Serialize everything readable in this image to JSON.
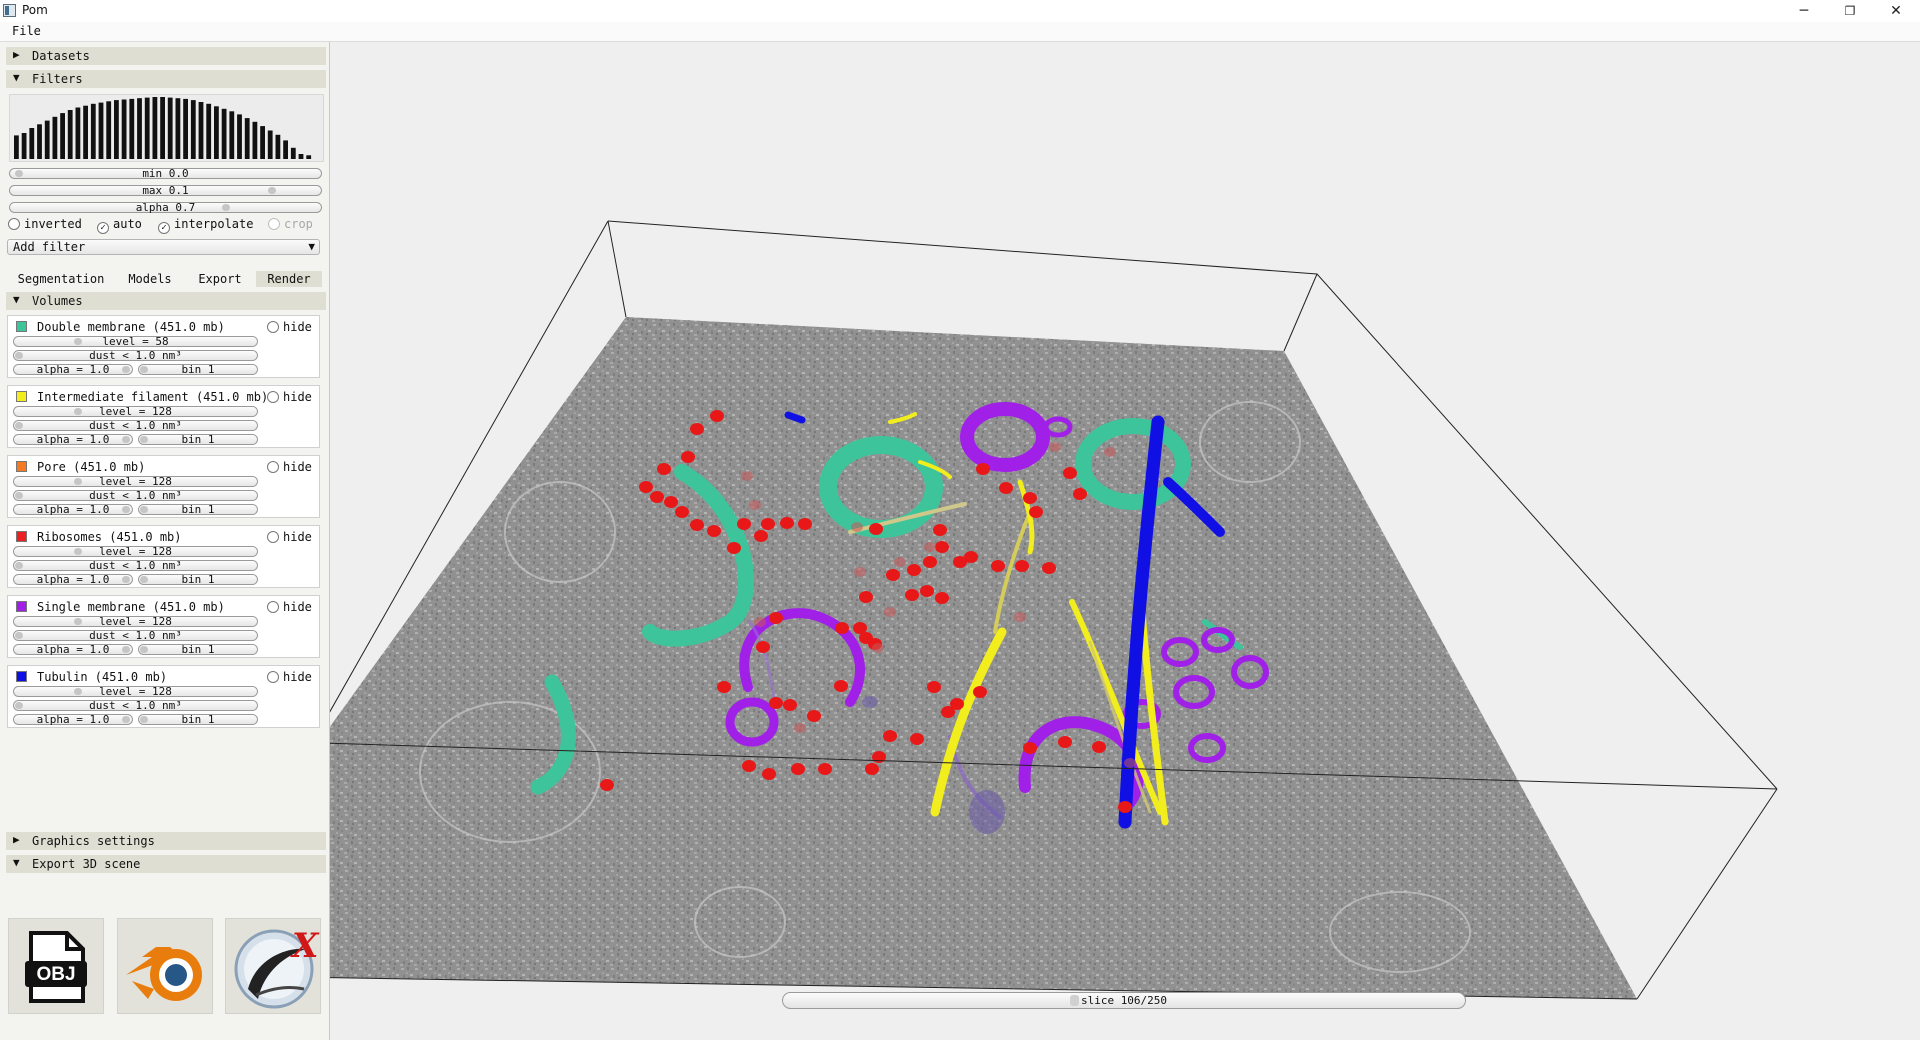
{
  "window": {
    "title": "Pom",
    "minimize": "─",
    "maximize": "❐",
    "close": "✕"
  },
  "menu": {
    "file": "File"
  },
  "sections": {
    "datasets": "Datasets",
    "filters": "Filters",
    "volumes": "Volumes",
    "graphics": "Graphics settings",
    "export3d": "Export 3D scene"
  },
  "arrows": {
    "collapsed": "▶",
    "expanded": "▼",
    "dropdown": "▼"
  },
  "histogram": [
    0.38,
    0.42,
    0.5,
    0.56,
    0.62,
    0.68,
    0.74,
    0.79,
    0.83,
    0.86,
    0.89,
    0.91,
    0.93,
    0.95,
    0.96,
    0.97,
    0.98,
    0.99,
    1.0,
    1.0,
    0.99,
    0.98,
    0.97,
    0.95,
    0.92,
    0.89,
    0.85,
    0.81,
    0.77,
    0.72,
    0.66,
    0.6,
    0.53,
    0.46,
    0.39,
    0.3,
    0.18,
    0.08,
    0.06
  ],
  "filters": {
    "min_label": "min 0.0",
    "min_value": 0.0,
    "max_label": "max 0.1",
    "max_value": 0.1,
    "alpha_label": "alpha 0.7",
    "alpha_value": 0.7,
    "inverted": {
      "label": "inverted",
      "checked": false
    },
    "auto": {
      "label": "auto",
      "checked": true
    },
    "interpolate": {
      "label": "interpolate",
      "checked": true
    },
    "crop": {
      "label": "crop",
      "checked": false,
      "disabled": true
    },
    "add_filter": "Add filter"
  },
  "check_mark": "✓",
  "tabs": [
    {
      "label": "Segmentation",
      "active": false
    },
    {
      "label": "Models",
      "active": false
    },
    {
      "label": "Export",
      "active": false
    },
    {
      "label": "Render",
      "active": true
    }
  ],
  "hide_label": "hide",
  "volumes": [
    {
      "name": "Double membrane (451.0 mb)",
      "color": "#3ec49a",
      "level": "level = 58",
      "level_value": 58,
      "dust": "dust < 1.0 nm³",
      "alpha": "alpha = 1.0",
      "bin": "bin 1"
    },
    {
      "name": "Intermediate filament (451.0 mb)",
      "color": "#f2ee1e",
      "level": "level = 128",
      "level_value": 128,
      "dust": "dust < 1.0 nm³",
      "alpha": "alpha = 1.0",
      "bin": "bin 1"
    },
    {
      "name": "Pore (451.0 mb)",
      "color": "#f47a24",
      "level": "level = 128",
      "level_value": 128,
      "dust": "dust < 1.0 nm³",
      "alpha": "alpha = 1.0",
      "bin": "bin 1"
    },
    {
      "name": "Ribosomes (451.0 mb)",
      "color": "#ec2020",
      "level": "level = 128",
      "level_value": 128,
      "dust": "dust < 1.0 nm³",
      "alpha": "alpha = 1.0",
      "bin": "bin 1"
    },
    {
      "name": "Single membrane (451.0 mb)",
      "color": "#a020e8",
      "level": "level = 128",
      "level_value": 128,
      "dust": "dust < 1.0 nm³",
      "alpha": "alpha = 1.0",
      "bin": "bin 1"
    },
    {
      "name": "Tubulin (451.0 mb)",
      "color": "#1010e4",
      "level": "level = 128",
      "level_value": 128,
      "dust": "dust < 1.0 nm³",
      "alpha": "alpha = 1.0",
      "bin": "bin 1"
    }
  ],
  "export": {
    "obj_label": "OBJ",
    "blender_icon": "blender-icon",
    "chimerax_label": "X"
  },
  "slice": {
    "label": "slice 106/250",
    "current": 106,
    "total": 250
  }
}
